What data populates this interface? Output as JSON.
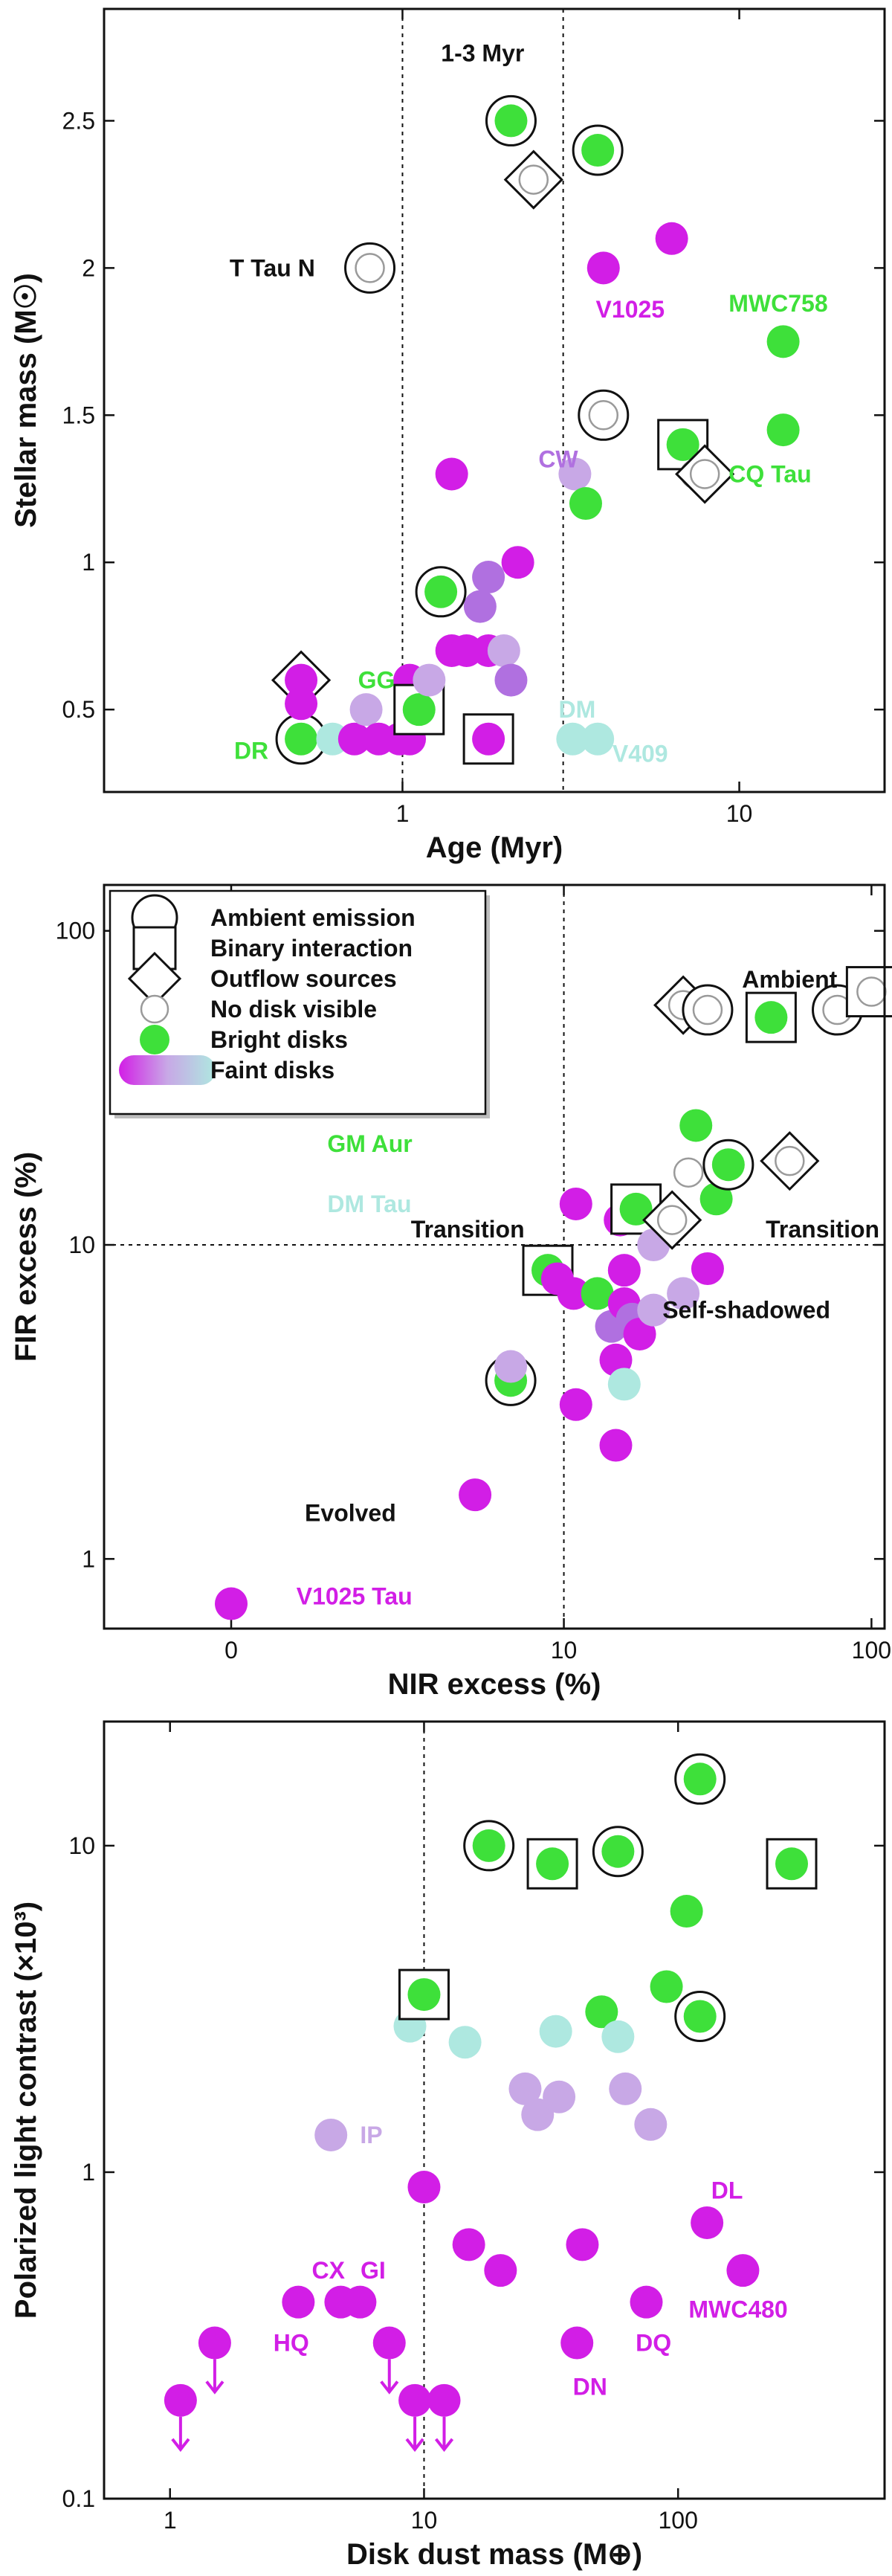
{
  "colors": {
    "bright": "#3ee03a",
    "faint_magenta": "#d21ee6",
    "faint_purple": "#b070e0",
    "faint_lavender": "#c8a8e6",
    "faint_teal": "#aee8e0",
    "line": "#111111"
  },
  "chart_data": [
    {
      "type": "scatter",
      "xlabel": "Age (Myr)",
      "ylabel": "Stellar mass (M☉)",
      "xscale": "log",
      "xlim": [
        0.13,
        27
      ],
      "ylim": [
        0.22,
        2.88
      ],
      "xticks": [
        {
          "v": 1,
          "label": "1"
        },
        {
          "v": 10,
          "label": "10"
        }
      ],
      "yticks": [
        {
          "v": 0.5,
          "label": "0.5"
        },
        {
          "v": 1,
          "label": "1"
        },
        {
          "v": 1.5,
          "label": "1.5"
        },
        {
          "v": 2,
          "label": "2"
        },
        {
          "v": 2.5,
          "label": "2.5"
        }
      ],
      "vlines": [
        1,
        3
      ],
      "hlines": [],
      "annotations": [
        {
          "text": "1-3 Myr",
          "x": 1.73,
          "y": 2.73,
          "anchor": "middle",
          "color": "#111111"
        },
        {
          "text": "T Tau N",
          "x": 0.55,
          "y": 2.0,
          "anchor": "end",
          "color": "#111111"
        },
        {
          "text": "V1025",
          "x": 3.75,
          "y": 1.86,
          "anchor": "start",
          "color": "#d21ee6"
        },
        {
          "text": "MWC758",
          "x": 9.3,
          "y": 1.88,
          "anchor": "start",
          "color": "#3ee03a"
        },
        {
          "text": "CW",
          "x": 2.9,
          "y": 1.35,
          "anchor": "middle",
          "color": "#b070e0"
        },
        {
          "text": "CQ Tau",
          "x": 9.3,
          "y": 1.3,
          "anchor": "start",
          "color": "#3ee03a"
        },
        {
          "text": "GG",
          "x": 0.95,
          "y": 0.6,
          "anchor": "end",
          "color": "#3ee03a"
        },
        {
          "text": "DR",
          "x": 0.4,
          "y": 0.36,
          "anchor": "end",
          "color": "#3ee03a"
        },
        {
          "text": "DM",
          "x": 3.3,
          "y": 0.5,
          "anchor": "middle",
          "color": "#aee8e0"
        },
        {
          "text": "V409",
          "x": 4.2,
          "y": 0.35,
          "anchor": "start",
          "color": "#aee8e0"
        }
      ],
      "points": [
        {
          "x": 0.5,
          "y": 0.4,
          "c": "bright",
          "m": "circle"
        },
        {
          "x": 0.5,
          "y": 0.6,
          "c": "faint_magenta",
          "m": "diamond"
        },
        {
          "x": 0.5,
          "y": 0.52,
          "c": "faint_magenta",
          "m": ""
        },
        {
          "x": 0.62,
          "y": 0.4,
          "c": "faint_teal",
          "m": ""
        },
        {
          "x": 0.72,
          "y": 0.4,
          "c": "faint_magenta",
          "m": ""
        },
        {
          "x": 0.78,
          "y": 0.5,
          "c": "faint_lavender",
          "m": ""
        },
        {
          "x": 0.85,
          "y": 0.4,
          "c": "faint_magenta",
          "m": ""
        },
        {
          "x": 0.98,
          "y": 0.4,
          "c": "faint_magenta",
          "m": ""
        },
        {
          "x": 1.05,
          "y": 0.4,
          "c": "faint_magenta",
          "m": ""
        },
        {
          "x": 1.05,
          "y": 0.6,
          "c": "faint_magenta",
          "m": ""
        },
        {
          "x": 1.12,
          "y": 0.5,
          "c": "bright",
          "m": "square"
        },
        {
          "x": 1.2,
          "y": 0.6,
          "c": "faint_lavender",
          "m": ""
        },
        {
          "x": 1.4,
          "y": 0.7,
          "c": "faint_magenta",
          "m": ""
        },
        {
          "x": 1.55,
          "y": 0.7,
          "c": "faint_magenta",
          "m": ""
        },
        {
          "x": 1.7,
          "y": 0.85,
          "c": "faint_purple",
          "m": ""
        },
        {
          "x": 1.8,
          "y": 0.7,
          "c": "faint_magenta",
          "m": ""
        },
        {
          "x": 1.8,
          "y": 0.95,
          "c": "faint_purple",
          "m": ""
        },
        {
          "x": 1.8,
          "y": 0.4,
          "c": "faint_magenta",
          "m": "square"
        },
        {
          "x": 1.3,
          "y": 0.9,
          "c": "bright",
          "m": "circle"
        },
        {
          "x": 1.4,
          "y": 1.3,
          "c": "faint_magenta",
          "m": ""
        },
        {
          "x": 2.0,
          "y": 0.7,
          "c": "faint_lavender",
          "m": ""
        },
        {
          "x": 2.1,
          "y": 0.6,
          "c": "faint_purple",
          "m": ""
        },
        {
          "x": 2.2,
          "y": 1.0,
          "c": "faint_magenta",
          "m": ""
        },
        {
          "x": 2.1,
          "y": 2.5,
          "c": "bright",
          "m": "circle"
        },
        {
          "x": 2.45,
          "y": 2.3,
          "c": "",
          "m": "diamond"
        },
        {
          "x": 3.2,
          "y": 0.4,
          "c": "faint_teal",
          "m": ""
        },
        {
          "x": 3.25,
          "y": 1.3,
          "c": "faint_lavender",
          "m": ""
        },
        {
          "x": 3.5,
          "y": 1.2,
          "c": "bright",
          "m": ""
        },
        {
          "x": 3.8,
          "y": 0.4,
          "c": "faint_teal",
          "m": ""
        },
        {
          "x": 3.8,
          "y": 2.4,
          "c": "bright",
          "m": "circle"
        },
        {
          "x": 3.95,
          "y": 1.5,
          "c": "",
          "m": "circle"
        },
        {
          "x": 3.95,
          "y": 2.0,
          "c": "faint_magenta",
          "m": ""
        },
        {
          "x": 6.3,
          "y": 2.1,
          "c": "faint_magenta",
          "m": ""
        },
        {
          "x": 6.8,
          "y": 1.4,
          "c": "bright",
          "m": "square"
        },
        {
          "x": 7.4,
          "y": 1.3,
          "c": "",
          "m": ""
        },
        {
          "x": 7.9,
          "y": 1.3,
          "c": "",
          "m": "diamond"
        },
        {
          "x": 0.8,
          "y": 2.0,
          "c": "",
          "m": "circle"
        },
        {
          "x": 13.5,
          "y": 1.75,
          "c": "bright",
          "m": ""
        },
        {
          "x": 13.5,
          "y": 1.45,
          "c": "bright",
          "m": ""
        }
      ]
    },
    {
      "type": "scatter",
      "xlabel": "NIR excess (%)",
      "ylabel": "FIR excess (%)",
      "xscale": "symlog",
      "yscale": "log",
      "xlim": [
        -1.5,
        110
      ],
      "ylim": [
        0.6,
        140
      ],
      "xticks": [
        {
          "v": 0,
          "label": "0"
        },
        {
          "v": 10,
          "label": "10"
        },
        {
          "v": 100,
          "label": "100"
        }
      ],
      "yticks": [
        {
          "v": 1,
          "label": "1"
        },
        {
          "v": 10,
          "label": "10"
        },
        {
          "v": 100,
          "label": "100"
        }
      ],
      "vlines": [
        10
      ],
      "hlines": [
        10
      ],
      "annotations": [
        {
          "text": "Ambient",
          "x": 55,
          "y": 70,
          "anchor": "middle",
          "color": "#111111"
        },
        {
          "text": "Transition",
          "x": 4.5,
          "y": 11.2,
          "anchor": "middle",
          "color": "#111111"
        },
        {
          "text": "Transition",
          "x": 70,
          "y": 11.2,
          "anchor": "middle",
          "color": "#111111"
        },
        {
          "text": "Self-shadowed",
          "x": 40,
          "y": 6.2,
          "anchor": "middle",
          "color": "#111111"
        },
        {
          "text": "Evolved",
          "x": 0.7,
          "y": 1.4,
          "anchor": "start",
          "color": "#111111"
        },
        {
          "text": "V1025 Tau",
          "x": 0.6,
          "y": 0.76,
          "anchor": "start",
          "color": "#d21ee6"
        },
        {
          "text": "GM Aur",
          "x": 1.0,
          "y": 21,
          "anchor": "start",
          "color": "#3ee03a"
        },
        {
          "text": "DM Tau",
          "x": 1.0,
          "y": 13.5,
          "anchor": "start",
          "color": "#aee8e0"
        }
      ],
      "legend": {
        "position": "top-left",
        "items": [
          {
            "label": "Ambient emission",
            "m": "circle"
          },
          {
            "label": "Binary interaction",
            "m": "square"
          },
          {
            "label": "Outflow sources",
            "m": "diamond"
          },
          {
            "label": "No disk visible",
            "m": "nodisk"
          },
          {
            "label": "Bright disks",
            "m": "bright"
          },
          {
            "label": "Faint disks",
            "m": "gradient"
          }
        ]
      },
      "points": [
        {
          "x": 0,
          "y": 0.72,
          "c": "faint_magenta",
          "m": ""
        },
        {
          "x": 4.8,
          "y": 1.6,
          "c": "faint_magenta",
          "m": ""
        },
        {
          "x": 6.5,
          "y": 3.7,
          "c": "bright",
          "m": "circle"
        },
        {
          "x": 6.5,
          "y": 4.1,
          "c": "faint_lavender",
          "m": ""
        },
        {
          "x": 8.8,
          "y": 8.3,
          "c": "bright",
          "m": "square"
        },
        {
          "x": 9.5,
          "y": 7.8,
          "c": "faint_magenta",
          "m": ""
        },
        {
          "x": 11,
          "y": 3.1,
          "c": "faint_magenta",
          "m": ""
        },
        {
          "x": 10.8,
          "y": 7.0,
          "c": "faint_magenta",
          "m": ""
        },
        {
          "x": 11,
          "y": 13.5,
          "c": "faint_magenta",
          "m": ""
        },
        {
          "x": 13,
          "y": 7.0,
          "c": "bright",
          "m": ""
        },
        {
          "x": 14.5,
          "y": 5.5,
          "c": "faint_purple",
          "m": ""
        },
        {
          "x": 15,
          "y": 4.3,
          "c": "faint_magenta",
          "m": ""
        },
        {
          "x": 15,
          "y": 2.3,
          "c": "faint_magenta",
          "m": ""
        },
        {
          "x": 15.5,
          "y": 12,
          "c": "faint_magenta",
          "m": ""
        },
        {
          "x": 16,
          "y": 8.3,
          "c": "faint_magenta",
          "m": ""
        },
        {
          "x": 16,
          "y": 6.5,
          "c": "faint_magenta",
          "m": ""
        },
        {
          "x": 16,
          "y": 3.6,
          "c": "faint_teal",
          "m": ""
        },
        {
          "x": 17,
          "y": 5.8,
          "c": "faint_purple",
          "m": ""
        },
        {
          "x": 17.5,
          "y": 13,
          "c": "bright",
          "m": "square"
        },
        {
          "x": 18,
          "y": 5.2,
          "c": "faint_magenta",
          "m": ""
        },
        {
          "x": 20,
          "y": 10,
          "c": "faint_lavender",
          "m": ""
        },
        {
          "x": 20,
          "y": 6.2,
          "c": "faint_lavender",
          "m": ""
        },
        {
          "x": 23,
          "y": 12,
          "c": "",
          "m": "diamond"
        },
        {
          "x": 25,
          "y": 7.0,
          "c": "faint_lavender",
          "m": ""
        },
        {
          "x": 26,
          "y": 17,
          "c": "",
          "m": ""
        },
        {
          "x": 27.5,
          "y": 24,
          "c": "bright",
          "m": ""
        },
        {
          "x": 30,
          "y": 8.4,
          "c": "faint_magenta",
          "m": ""
        },
        {
          "x": 32,
          "y": 14,
          "c": "bright",
          "m": ""
        },
        {
          "x": 35,
          "y": 18,
          "c": "bright",
          "m": "circle"
        },
        {
          "x": 55,
          "y": 18.5,
          "c": "",
          "m": "diamond"
        },
        {
          "x": 25,
          "y": 58,
          "c": "",
          "m": "diamond"
        },
        {
          "x": 30,
          "y": 56,
          "c": "",
          "m": "circle"
        },
        {
          "x": 48,
          "y": 53,
          "c": "bright",
          "m": "square"
        },
        {
          "x": 78,
          "y": 56,
          "c": "",
          "m": "circle"
        },
        {
          "x": 100,
          "y": 64,
          "c": "",
          "m": "square"
        }
      ]
    },
    {
      "type": "scatter",
      "xlabel": "Disk dust mass (M⊕)",
      "ylabel": "Polarized light contrast (×10³)",
      "xscale": "log",
      "yscale": "log",
      "xlim": [
        0.55,
        650
      ],
      "ylim": [
        0.1,
        24
      ],
      "xticks": [
        {
          "v": 1,
          "label": "1"
        },
        {
          "v": 10,
          "label": "10"
        },
        {
          "v": 100,
          "label": "100"
        }
      ],
      "yticks": [
        {
          "v": 0.1,
          "label": "0.1"
        },
        {
          "v": 1,
          "label": "1"
        },
        {
          "v": 10,
          "label": "10"
        }
      ],
      "vlines": [
        10
      ],
      "hlines": [],
      "annotations": [
        {
          "text": "IP",
          "x": 5.6,
          "y": 1.3,
          "anchor": "start",
          "color": "#c8a8e6"
        },
        {
          "text": "CX",
          "x": 4.2,
          "y": 0.5,
          "anchor": "middle",
          "color": "#d21ee6"
        },
        {
          "text": "GI",
          "x": 6.3,
          "y": 0.5,
          "anchor": "middle",
          "color": "#d21ee6"
        },
        {
          "text": "HQ",
          "x": 3.0,
          "y": 0.3,
          "anchor": "middle",
          "color": "#d21ee6"
        },
        {
          "text": "DL",
          "x": 135,
          "y": 0.88,
          "anchor": "start",
          "color": "#d21ee6"
        },
        {
          "text": "MWC480",
          "x": 110,
          "y": 0.38,
          "anchor": "start",
          "color": "#d21ee6"
        },
        {
          "text": "DQ",
          "x": 80,
          "y": 0.3,
          "anchor": "middle",
          "color": "#d21ee6"
        },
        {
          "text": "DN",
          "x": 45,
          "y": 0.22,
          "anchor": "middle",
          "color": "#d21ee6"
        }
      ],
      "points": [
        {
          "x": 1.1,
          "y": 0.2,
          "c": "faint_magenta",
          "m": "arrow"
        },
        {
          "x": 1.5,
          "y": 0.3,
          "c": "faint_magenta",
          "m": "arrow"
        },
        {
          "x": 3.2,
          "y": 0.4,
          "c": "faint_magenta",
          "m": ""
        },
        {
          "x": 4.3,
          "y": 1.3,
          "c": "faint_lavender",
          "m": ""
        },
        {
          "x": 4.7,
          "y": 0.4,
          "c": "faint_magenta",
          "m": ""
        },
        {
          "x": 5.6,
          "y": 0.4,
          "c": "faint_magenta",
          "m": ""
        },
        {
          "x": 7.3,
          "y": 0.3,
          "c": "faint_magenta",
          "m": "arrow"
        },
        {
          "x": 8.8,
          "y": 2.8,
          "c": "faint_teal",
          "m": ""
        },
        {
          "x": 9.2,
          "y": 0.2,
          "c": "faint_magenta",
          "m": "arrow"
        },
        {
          "x": 10,
          "y": 3.5,
          "c": "bright",
          "m": "square"
        },
        {
          "x": 10,
          "y": 0.9,
          "c": "faint_magenta",
          "m": ""
        },
        {
          "x": 12,
          "y": 0.2,
          "c": "faint_magenta",
          "m": "arrow"
        },
        {
          "x": 14.5,
          "y": 2.5,
          "c": "faint_teal",
          "m": ""
        },
        {
          "x": 15,
          "y": 0.6,
          "c": "faint_magenta",
          "m": ""
        },
        {
          "x": 18,
          "y": 10,
          "c": "bright",
          "m": "circle"
        },
        {
          "x": 20,
          "y": 0.5,
          "c": "faint_magenta",
          "m": ""
        },
        {
          "x": 25,
          "y": 1.8,
          "c": "faint_lavender",
          "m": ""
        },
        {
          "x": 28,
          "y": 1.5,
          "c": "faint_lavender",
          "m": ""
        },
        {
          "x": 32,
          "y": 8.8,
          "c": "bright",
          "m": "square"
        },
        {
          "x": 33,
          "y": 2.7,
          "c": "faint_teal",
          "m": ""
        },
        {
          "x": 34,
          "y": 1.7,
          "c": "faint_lavender",
          "m": ""
        },
        {
          "x": 40,
          "y": 0.3,
          "c": "faint_magenta",
          "m": ""
        },
        {
          "x": 42,
          "y": 0.6,
          "c": "faint_magenta",
          "m": ""
        },
        {
          "x": 50,
          "y": 3.1,
          "c": "bright",
          "m": ""
        },
        {
          "x": 58,
          "y": 9.6,
          "c": "bright",
          "m": "circle"
        },
        {
          "x": 58,
          "y": 2.6,
          "c": "faint_teal",
          "m": ""
        },
        {
          "x": 62,
          "y": 1.8,
          "c": "faint_lavender",
          "m": ""
        },
        {
          "x": 75,
          "y": 0.4,
          "c": "faint_magenta",
          "m": ""
        },
        {
          "x": 78,
          "y": 1.4,
          "c": "faint_lavender",
          "m": ""
        },
        {
          "x": 90,
          "y": 3.7,
          "c": "bright",
          "m": ""
        },
        {
          "x": 108,
          "y": 6.3,
          "c": "bright",
          "m": ""
        },
        {
          "x": 122,
          "y": 3.0,
          "c": "bright",
          "m": "circle"
        },
        {
          "x": 122,
          "y": 16,
          "c": "bright",
          "m": "circle"
        },
        {
          "x": 130,
          "y": 0.7,
          "c": "faint_magenta",
          "m": ""
        },
        {
          "x": 180,
          "y": 0.5,
          "c": "faint_magenta",
          "m": ""
        },
        {
          "x": 280,
          "y": 8.8,
          "c": "bright",
          "m": "square"
        }
      ]
    }
  ]
}
